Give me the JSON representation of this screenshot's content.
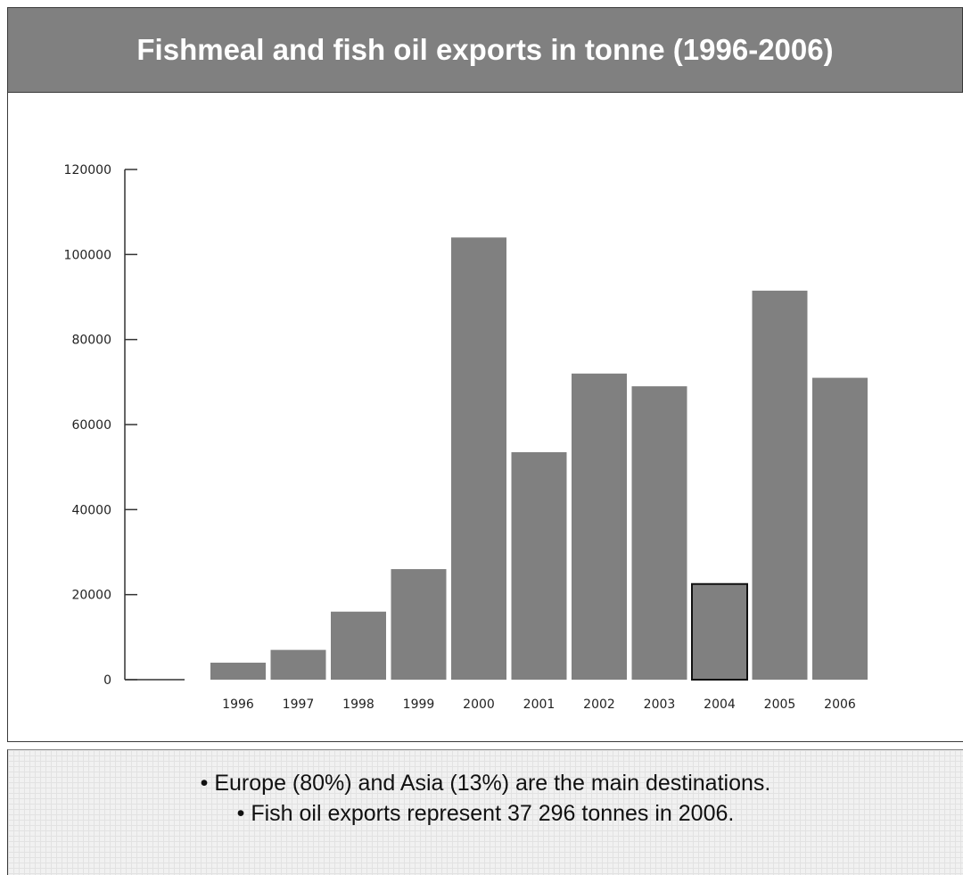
{
  "header": {
    "title": "Fishmeal and fish oil exports in tonne (1996-2006)"
  },
  "chart_data": {
    "type": "bar",
    "title": "",
    "xlabel": "",
    "ylabel": "",
    "categories": [
      "1996",
      "1997",
      "1998",
      "1999",
      "2000",
      "2001",
      "2002",
      "2003",
      "2004",
      "2005",
      "2006"
    ],
    "values": [
      4000,
      7000,
      16000,
      26000,
      104000,
      53500,
      72000,
      69000,
      22500,
      91500,
      71000
    ],
    "ylim": [
      0,
      120000
    ],
    "yticks": [
      0,
      20000,
      40000,
      60000,
      80000,
      100000,
      120000
    ],
    "ytick_labels": [
      "0",
      "20000",
      "40000",
      "60000",
      "80000",
      "100000",
      "120000"
    ],
    "grid": false,
    "bar_color": "#808080",
    "highlight_border": {
      "category": "2004",
      "color": "#111111"
    }
  },
  "notes": {
    "lines": [
      "• Europe (80%) and Asia (13%) are the main destinations.",
      "• Fish oil exports represent 37 296 tonnes in 2006."
    ]
  }
}
